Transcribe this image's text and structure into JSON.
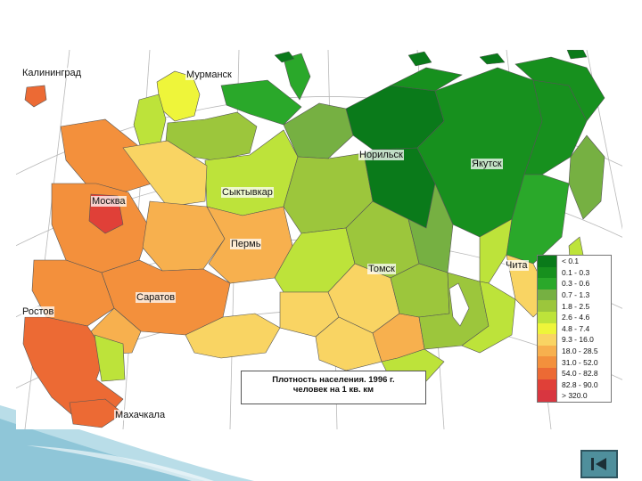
{
  "map": {
    "caption_line1": "Плотность населения. 1996 г.",
    "caption_line2": "человек на 1 кв. км",
    "cities": [
      {
        "id": "kaliningrad",
        "label": "Калининград"
      },
      {
        "id": "murmansk",
        "label": "Мурманск"
      },
      {
        "id": "norilsk",
        "label": "Норильск"
      },
      {
        "id": "yakutsk",
        "label": "Якутск"
      },
      {
        "id": "moscow",
        "label": "Москва"
      },
      {
        "id": "syktyvkar",
        "label": "Сыктывкар"
      },
      {
        "id": "perm",
        "label": "Пермь"
      },
      {
        "id": "tomsk",
        "label": "Томск"
      },
      {
        "id": "chita",
        "label": "Чита"
      },
      {
        "id": "saratov",
        "label": "Саратов"
      },
      {
        "id": "rostov",
        "label": "Ростов"
      },
      {
        "id": "makhachkala",
        "label": "Махачкала"
      }
    ]
  },
  "legend": {
    "items": [
      {
        "label": "< 0.1",
        "color": "#0a7a1a"
      },
      {
        "label": "0.1 - 0.3",
        "color": "#17901e"
      },
      {
        "label": "0.3 - 0.6",
        "color": "#2aa82a"
      },
      {
        "label": "0.7 - 1.3",
        "color": "#76b042"
      },
      {
        "label": "1.8 - 2.5",
        "color": "#9cc63c"
      },
      {
        "label": "2.6 - 4.6",
        "color": "#bde33a"
      },
      {
        "label": "4.8 - 7.4",
        "color": "#eef53a"
      },
      {
        "label": "9.3 - 16.0",
        "color": "#f9d463"
      },
      {
        "label": "18.0 - 28.5",
        "color": "#f7b04e"
      },
      {
        "label": "31.0 - 52.0",
        "color": "#f3903c"
      },
      {
        "label": "54.0 - 82.8",
        "color": "#ec6a34"
      },
      {
        "label": "82.8 - 90.0",
        "color": "#e04038"
      },
      {
        "label": "> 320.0",
        "color": "#d83640"
      }
    ]
  },
  "colors": {
    "accent": "#4f8f9c",
    "banner": "#8fc6d8",
    "graticule": "#b8b8b8"
  },
  "nav": {
    "icon": "first-slide-icon"
  }
}
